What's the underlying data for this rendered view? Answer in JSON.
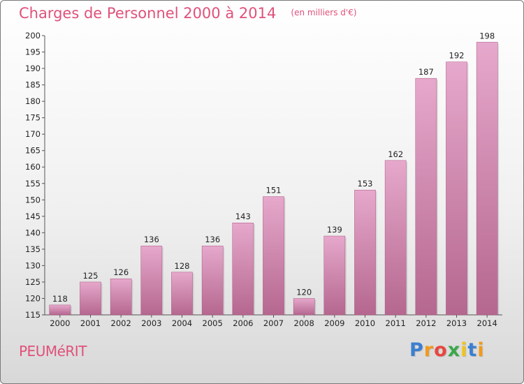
{
  "title": "Charges de Personnel 2000 à 2014",
  "subtitle": "(en milliers d'€)",
  "commune": "PEUMéRIT",
  "brand": {
    "letters": [
      "P",
      "r",
      "o",
      "x",
      "i",
      "t",
      "i"
    ],
    "colors": [
      "#3b7fd0",
      "#f29a1d",
      "#e8483e",
      "#3aa84a",
      "#f0c419",
      "#3b7fd0",
      "#f29a1d"
    ]
  },
  "colors": {
    "bar_top": "#e6a8cc",
    "bar_bottom": "#b5678f",
    "text": "#222222",
    "accent": "#e0517a"
  },
  "chart_data": {
    "type": "bar",
    "categories": [
      "2000",
      "2001",
      "2002",
      "2003",
      "2004",
      "2005",
      "2006",
      "2007",
      "2008",
      "2009",
      "2010",
      "2011",
      "2012",
      "2013",
      "2014"
    ],
    "values": [
      118,
      125,
      126,
      136,
      128,
      136,
      143,
      151,
      120,
      139,
      153,
      162,
      187,
      192,
      198
    ],
    "title": "Charges de Personnel 2000 à 2014",
    "xlabel": "",
    "ylabel": "",
    "ylim": [
      115,
      200
    ],
    "yticks": [
      115,
      120,
      125,
      130,
      135,
      140,
      145,
      150,
      155,
      160,
      165,
      170,
      175,
      180,
      185,
      190,
      195,
      200
    ],
    "grid": false,
    "legend": "none",
    "data_labels": true
  }
}
